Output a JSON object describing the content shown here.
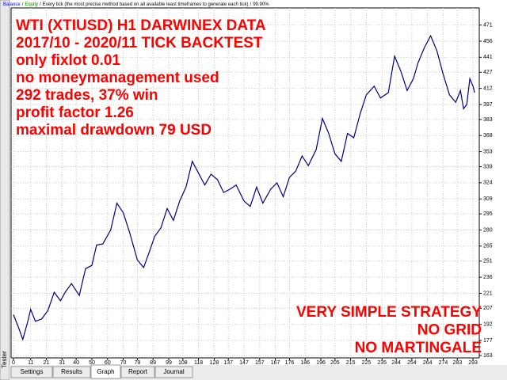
{
  "side_label": "Tester",
  "header": {
    "items": [
      "Balance",
      "Equity",
      "Every tick (the most precise method based on all available least timeframes to generate each tick)",
      "99.90%"
    ],
    "separator": "/"
  },
  "tabs": [
    "Settings",
    "Results",
    "Graph",
    "Report",
    "Journal"
  ],
  "chart_data": {
    "type": "line",
    "notes_top": [
      "WTI (XTIUSD) H1 DARWINEX DATA",
      "2017/10 - 2020/11 TICK BACKTEST",
      "only fixlot 0.01",
      "no moneymanagement used",
      "292 trades, 37% win",
      "profit factor 1.26",
      "maximal drawdown 79 USD"
    ],
    "notes_bottom": [
      "VERY SIMPLE STRATEGY",
      "NO GRID",
      "NO MARTINGALE"
    ],
    "x": [
      0,
      3,
      6,
      9,
      11,
      14,
      18,
      22,
      26,
      30,
      33,
      37,
      42,
      46,
      50,
      53,
      57,
      62,
      66,
      70,
      74,
      79,
      83,
      87,
      90,
      94,
      98,
      102,
      106,
      110,
      114,
      118,
      122,
      126,
      130,
      134,
      138,
      142,
      147,
      151,
      155,
      159,
      164,
      168,
      172,
      176,
      180,
      184,
      188,
      193,
      197,
      201,
      205,
      209,
      213,
      217,
      221,
      225,
      230,
      234,
      239,
      243,
      247,
      251,
      255,
      258,
      262,
      266,
      270,
      274,
      278,
      282,
      285,
      287,
      289,
      291,
      293,
      294
    ],
    "series": [
      {
        "name": "Balance",
        "color": "#000080",
        "values": [
          201,
          190,
          178,
          194,
          206,
          195,
          197,
          205,
          222,
          214,
          222,
          230,
          219,
          244,
          247,
          266,
          267,
          280,
          305,
          296,
          278,
          252,
          245,
          261,
          274,
          282,
          300,
          289,
          307,
          320,
          344,
          333,
          322,
          332,
          327,
          315,
          318,
          322,
          307,
          302,
          320,
          305,
          318,
          324,
          311,
          329,
          335,
          349,
          340,
          355,
          384,
          370,
          351,
          344,
          370,
          366,
          388,
          406,
          414,
          403,
          408,
          442,
          428,
          410,
          421,
          436,
          450,
          461,
          447,
          425,
          406,
          399,
          410,
          393,
          397,
          421,
          414,
          408
        ]
      }
    ],
    "xlim": [
      -1.5,
      297
    ],
    "ylim": [
      160.8,
      487
    ],
    "xticks": [
      0,
      11,
      21,
      31,
      40,
      50,
      60,
      70,
      79,
      89,
      99,
      108,
      118,
      128,
      137,
      147,
      157,
      167,
      176,
      186,
      196,
      205,
      215,
      225,
      235,
      244,
      254,
      264,
      274,
      283,
      293
    ],
    "yticks": [
      163,
      177,
      192,
      207,
      221,
      236,
      251,
      265,
      280,
      295,
      309,
      324,
      339,
      353,
      368,
      383,
      397,
      412,
      427,
      441,
      456,
      471
    ],
    "grid": true,
    "header_colors": [
      "#0000ff",
      "#008000"
    ]
  }
}
